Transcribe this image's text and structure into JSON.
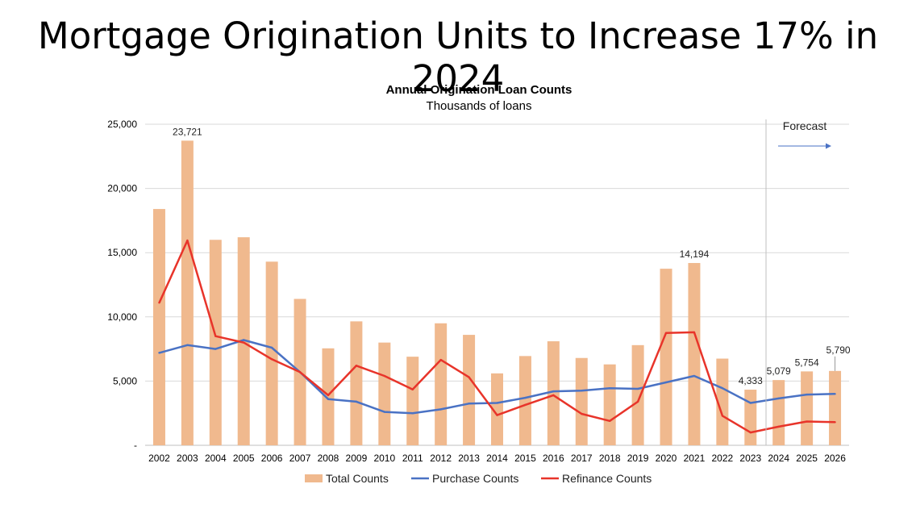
{
  "slide": {
    "title": "Mortgage Origination Units to Increase 17% in 2024"
  },
  "chart_data": {
    "type": "bar",
    "title": "Annual Origination Loan Counts",
    "subtitle": "Thousands of loans",
    "categories": [
      "2002",
      "2003",
      "2004",
      "2005",
      "2006",
      "2007",
      "2008",
      "2009",
      "2010",
      "2011",
      "2012",
      "2013",
      "2014",
      "2015",
      "2016",
      "2017",
      "2018",
      "2019",
      "2020",
      "2021",
      "2022",
      "2023",
      "2024",
      "2025",
      "2026"
    ],
    "series": [
      {
        "name": "Total Counts",
        "type": "bar",
        "color": "#F0B98E",
        "values": [
          18400,
          23721,
          16000,
          16200,
          14300,
          11400,
          7550,
          9650,
          8000,
          6900,
          9500,
          8600,
          5600,
          6950,
          8100,
          6800,
          6300,
          7800,
          13750,
          14194,
          6750,
          4333,
          5079,
          5754,
          5790
        ]
      },
      {
        "name": "Purchase Counts",
        "type": "line",
        "color": "#4A72C4",
        "values": [
          7200,
          7800,
          7500,
          8200,
          7600,
          5700,
          3600,
          3400,
          2600,
          2500,
          2800,
          3250,
          3300,
          3700,
          4200,
          4250,
          4450,
          4400,
          4900,
          5400,
          4450,
          3300,
          3650,
          3950,
          4000
        ]
      },
      {
        "name": "Refinance Counts",
        "type": "line",
        "color": "#E8342A",
        "values": [
          11100,
          15950,
          8500,
          8000,
          6700,
          5700,
          3900,
          6200,
          5400,
          4350,
          6650,
          5300,
          2350,
          3150,
          3900,
          2450,
          1900,
          3400,
          8750,
          8800,
          2300,
          1000,
          1450,
          1850,
          1800
        ]
      }
    ],
    "data_labels": [
      {
        "category": "2003",
        "text": "23,721"
      },
      {
        "category": "2021",
        "text": "14,194"
      },
      {
        "category": "2023",
        "text": "4,333"
      },
      {
        "category": "2024",
        "text": "5,079"
      },
      {
        "category": "2025",
        "text": "5,754"
      },
      {
        "category": "2026",
        "text": "5,790"
      }
    ],
    "y_ticks": [
      {
        "value": 0,
        "label": "-"
      },
      {
        "value": 5000,
        "label": "5,000"
      },
      {
        "value": 10000,
        "label": "10,000"
      },
      {
        "value": 15000,
        "label": "15,000"
      },
      {
        "value": 20000,
        "label": "20,000"
      },
      {
        "value": 25000,
        "label": "25,000"
      }
    ],
    "ylim": [
      0,
      25000
    ],
    "xlabel": "",
    "ylabel": "",
    "grid": true,
    "legend_position": "bottom",
    "annotations": {
      "forecast_label": "Forecast",
      "forecast_start_after": "2023"
    }
  }
}
